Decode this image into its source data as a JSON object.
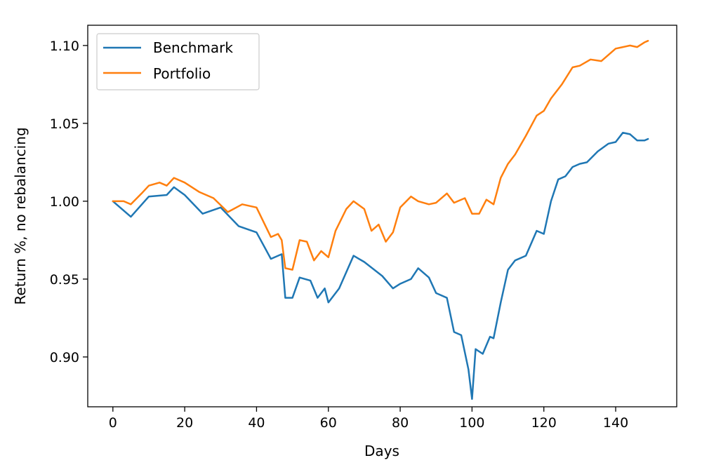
{
  "chart_data": {
    "type": "line",
    "title": "",
    "xlabel": "Days",
    "ylabel": "Return %, no rebalancing",
    "xlim": [
      -7,
      157
    ],
    "ylim": [
      0.868,
      1.113
    ],
    "xticks": [
      0,
      20,
      40,
      60,
      80,
      100,
      120,
      140
    ],
    "xtick_labels": [
      "0",
      "20",
      "40",
      "60",
      "80",
      "100",
      "120",
      "140"
    ],
    "yticks": [
      0.9,
      0.95,
      1.0,
      1.05,
      1.1
    ],
    "ytick_labels": [
      "0.90",
      "0.95",
      "1.00",
      "1.05",
      "1.10"
    ],
    "grid": false,
    "legend": "top-left",
    "series": [
      {
        "name": "Benchmark",
        "color": "#1f77b4",
        "x": [
          0,
          5,
          10,
          15,
          17,
          20,
          25,
          30,
          35,
          40,
          44,
          47,
          48,
          50,
          52,
          55,
          57,
          59,
          60,
          63,
          67,
          70,
          75,
          78,
          80,
          83,
          85,
          88,
          90,
          93,
          95,
          97,
          99,
          100,
          101,
          103,
          105,
          106,
          108,
          110,
          112,
          115,
          118,
          120,
          122,
          124,
          126,
          128,
          130,
          132,
          135,
          138,
          140,
          142,
          144,
          146,
          148,
          149
        ],
        "y": [
          1.0,
          0.99,
          1.003,
          1.004,
          1.009,
          1.004,
          0.992,
          0.996,
          0.984,
          0.98,
          0.963,
          0.966,
          0.938,
          0.938,
          0.951,
          0.949,
          0.938,
          0.944,
          0.935,
          0.944,
          0.965,
          0.961,
          0.952,
          0.944,
          0.947,
          0.95,
          0.957,
          0.951,
          0.941,
          0.938,
          0.916,
          0.914,
          0.892,
          0.873,
          0.905,
          0.902,
          0.913,
          0.912,
          0.935,
          0.956,
          0.962,
          0.965,
          0.981,
          0.979,
          1.0,
          1.014,
          1.016,
          1.022,
          1.024,
          1.025,
          1.032,
          1.037,
          1.038,
          1.044,
          1.043,
          1.039,
          1.039,
          1.04
        ]
      },
      {
        "name": "Portfolio",
        "color": "#ff7f0e",
        "x": [
          0,
          3,
          5,
          8,
          10,
          13,
          15,
          17,
          20,
          24,
          28,
          32,
          36,
          40,
          44,
          46,
          47,
          48,
          50,
          52,
          54,
          56,
          58,
          60,
          62,
          65,
          67,
          70,
          72,
          74,
          76,
          78,
          80,
          83,
          85,
          88,
          90,
          93,
          95,
          98,
          100,
          102,
          104,
          106,
          108,
          110,
          112,
          115,
          118,
          120,
          122,
          125,
          128,
          130,
          133,
          136,
          138,
          140,
          142,
          144,
          146,
          148,
          149
        ],
        "y": [
          1.0,
          1.0,
          0.998,
          1.005,
          1.01,
          1.012,
          1.01,
          1.015,
          1.012,
          1.006,
          1.002,
          0.993,
          0.998,
          0.996,
          0.977,
          0.979,
          0.975,
          0.957,
          0.956,
          0.975,
          0.974,
          0.962,
          0.968,
          0.964,
          0.981,
          0.995,
          1.0,
          0.995,
          0.981,
          0.985,
          0.974,
          0.98,
          0.996,
          1.003,
          1.0,
          0.998,
          0.999,
          1.005,
          0.999,
          1.002,
          0.992,
          0.992,
          1.001,
          0.998,
          1.015,
          1.024,
          1.03,
          1.042,
          1.055,
          1.058,
          1.066,
          1.075,
          1.086,
          1.087,
          1.091,
          1.09,
          1.094,
          1.098,
          1.099,
          1.1,
          1.099,
          1.102,
          1.103
        ]
      }
    ]
  }
}
